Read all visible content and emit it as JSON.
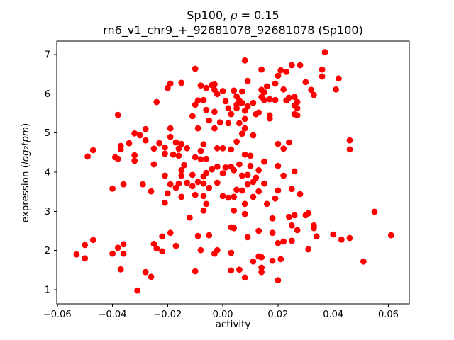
{
  "figure": {
    "background": "#ffffff"
  },
  "chart_data": {
    "type": "scatter",
    "title": "Sp100, ρ = 0.15",
    "subtitle": "rn6_v1_chr9_+_92681078_92681078 (Sp100)",
    "xlabel": "activity",
    "ylabel": "expression (log₂tpm)",
    "marker_color": "#ff0000",
    "marker_radius_px": 4.4,
    "grid": false,
    "legend": null,
    "xlim": [
      -0.0602,
      0.0676
    ],
    "ylim": [
      0.639,
      7.344
    ],
    "xticks": [
      -0.06,
      -0.04,
      -0.02,
      0.0,
      0.02,
      0.04,
      0.06
    ],
    "xtick_labels": [
      "−0.06",
      "−0.04",
      "−0.02",
      "0.00",
      "0.02",
      "0.04",
      "0.06"
    ],
    "yticks": [
      1,
      2,
      3,
      4,
      5,
      6,
      7
    ],
    "ytick_labels": [
      "1",
      "2",
      "3",
      "4",
      "5",
      "6",
      "7"
    ],
    "points": [
      [
        -0.019,
        6.26
      ],
      [
        -0.02,
        6.15
      ],
      [
        -0.024,
        5.79
      ],
      [
        -0.038,
        5.46
      ],
      [
        -0.028,
        5.1
      ],
      [
        -0.032,
        4.99
      ],
      [
        -0.03,
        4.94
      ],
      [
        -0.019,
        5.12
      ],
      [
        -0.019,
        4.9
      ],
      [
        -0.028,
        4.81
      ],
      [
        -0.034,
        4.74
      ],
      [
        -0.023,
        4.74
      ],
      [
        -0.021,
        4.63
      ],
      [
        -0.047,
        4.56
      ],
      [
        -0.049,
        4.4
      ],
      [
        -0.037,
        4.67
      ],
      [
        -0.037,
        4.58
      ],
      [
        -0.039,
        4.38
      ],
      [
        -0.038,
        4.34
      ],
      [
        -0.032,
        4.43
      ],
      [
        -0.032,
        4.29
      ],
      [
        -0.025,
        4.6
      ],
      [
        -0.025,
        4.2
      ],
      [
        -0.021,
        4.47
      ],
      [
        -0.009,
        5.83
      ],
      [
        -0.01,
        5.72
      ],
      [
        -0.006,
        5.59
      ],
      [
        -0.003,
        5.54
      ],
      [
        0.002,
        5.63
      ],
      [
        0.003,
        5.48
      ],
      [
        -0.011,
        5.43
      ],
      [
        -0.005,
        5.32
      ],
      [
        -0.001,
        5.27
      ],
      [
        0.002,
        5.25
      ],
      [
        -0.009,
        5.12
      ],
      [
        -0.003,
        5.12
      ],
      [
        -0.017,
        4.76
      ],
      [
        -0.015,
        4.72
      ],
      [
        -0.016,
        4.6
      ],
      [
        -0.013,
        4.61
      ],
      [
        -0.018,
        4.45
      ],
      [
        -0.016,
        4.42
      ],
      [
        -0.007,
        4.71
      ],
      [
        -0.008,
        4.54
      ],
      [
        -0.01,
        4.38
      ],
      [
        -0.008,
        4.33
      ],
      [
        -0.006,
        4.34
      ],
      [
        -0.002,
        4.61
      ],
      [
        0.0,
        4.61
      ],
      [
        0.003,
        4.58
      ],
      [
        -0.014,
        4.18
      ],
      [
        -0.015,
        4.05
      ],
      [
        -0.004,
        4.07
      ],
      [
        -0.002,
        4.14
      ],
      [
        0.001,
        4.12
      ],
      [
        0.003,
        4.14
      ],
      [
        0.004,
        4.05
      ],
      [
        -0.006,
        3.98
      ],
      [
        0.0,
        3.97
      ],
      [
        0.001,
        5.81
      ],
      [
        0.006,
        5.83
      ],
      [
        0.011,
        5.77
      ],
      [
        0.015,
        5.84
      ],
      [
        0.019,
        5.84
      ],
      [
        0.023,
        5.83
      ],
      [
        0.005,
        5.63
      ],
      [
        0.008,
        5.57
      ],
      [
        0.012,
        5.48
      ],
      [
        0.013,
        5.52
      ],
      [
        0.017,
        5.45
      ],
      [
        0.017,
        5.37
      ],
      [
        0.008,
        5.36
      ],
      [
        0.006,
        5.25
      ],
      [
        0.008,
        5.12
      ],
      [
        0.007,
        4.98
      ],
      [
        0.011,
        4.94
      ],
      [
        0.005,
        4.78
      ],
      [
        0.02,
        4.72
      ],
      [
        0.024,
        4.76
      ],
      [
        0.022,
        4.6
      ],
      [
        0.008,
        4.45
      ],
      [
        0.01,
        4.42
      ],
      [
        0.006,
        4.2
      ],
      [
        0.01,
        4.16
      ],
      [
        0.015,
        4.27
      ],
      [
        0.02,
        4.16
      ],
      [
        0.013,
        4.05
      ],
      [
        0.026,
        4.02
      ],
      [
        0.008,
        6.85
      ],
      [
        -0.01,
        6.64
      ],
      [
        0.014,
        6.62
      ],
      [
        0.021,
        6.6
      ],
      [
        0.023,
        6.56
      ],
      [
        -0.015,
        6.28
      ],
      [
        0.009,
        6.33
      ],
      [
        0.019,
        6.26
      ],
      [
        0.02,
        6.46
      ],
      [
        0.016,
        6.19
      ],
      [
        -0.008,
        6.21
      ],
      [
        -0.006,
        6.15
      ],
      [
        -0.004,
        6.22
      ],
      [
        -0.003,
        6.24
      ],
      [
        -0.003,
        6.1
      ],
      [
        -0.002,
        5.99
      ],
      [
        0.0,
        6.07
      ],
      [
        0.004,
        6.08
      ],
      [
        0.007,
        6.06
      ],
      [
        0.005,
        5.93
      ],
      [
        0.015,
        6.04
      ],
      [
        0.014,
        6.1
      ],
      [
        0.022,
        6.11
      ],
      [
        0.014,
        5.92
      ],
      [
        0.017,
        5.86
      ],
      [
        0.005,
        5.72
      ],
      [
        0.007,
        5.77
      ],
      [
        0.009,
        5.68
      ],
      [
        -0.007,
        5.84
      ],
      [
        0.024,
        5.9
      ],
      [
        0.026,
        5.92
      ],
      [
        0.037,
        7.06
      ],
      [
        0.025,
        6.73
      ],
      [
        0.028,
        6.73
      ],
      [
        0.036,
        6.62
      ],
      [
        0.036,
        6.44
      ],
      [
        0.03,
        6.3
      ],
      [
        0.042,
        6.39
      ],
      [
        0.041,
        6.11
      ],
      [
        0.032,
        6.1
      ],
      [
        0.033,
        5.97
      ],
      [
        0.027,
        5.79
      ],
      [
        0.026,
        5.7
      ],
      [
        0.027,
        5.63
      ],
      [
        0.026,
        5.48
      ],
      [
        0.027,
        5.45
      ],
      [
        0.046,
        4.81
      ],
      [
        0.046,
        4.58
      ],
      [
        -0.021,
        3.91
      ],
      [
        -0.04,
        3.58
      ],
      [
        -0.036,
        3.69
      ],
      [
        -0.029,
        3.69
      ],
      [
        -0.026,
        3.51
      ],
      [
        -0.019,
        3.69
      ],
      [
        -0.017,
        3.6
      ],
      [
        -0.02,
        3.46
      ],
      [
        -0.021,
        3.22
      ],
      [
        -0.047,
        2.27
      ],
      [
        -0.05,
        2.14
      ],
      [
        -0.053,
        1.9
      ],
      [
        -0.05,
        1.8
      ],
      [
        -0.022,
        2.36
      ],
      [
        -0.019,
        2.45
      ],
      [
        -0.025,
        2.17
      ],
      [
        -0.024,
        2.05
      ],
      [
        -0.022,
        1.98
      ],
      [
        -0.04,
        1.92
      ],
      [
        -0.038,
        2.07
      ],
      [
        -0.036,
        2.16
      ],
      [
        -0.036,
        1.92
      ],
      [
        -0.037,
        1.52
      ],
      [
        -0.028,
        1.45
      ],
      [
        -0.026,
        1.33
      ],
      [
        -0.031,
        0.98
      ],
      [
        -0.017,
        2.12
      ],
      [
        -0.015,
        3.91
      ],
      [
        -0.011,
        3.93
      ],
      [
        -0.007,
        3.89
      ],
      [
        0.007,
        3.91
      ],
      [
        0.009,
        3.93
      ],
      [
        0.012,
        3.86
      ],
      [
        0.022,
        3.91
      ],
      [
        -0.016,
        3.71
      ],
      [
        -0.013,
        3.73
      ],
      [
        -0.011,
        3.64
      ],
      [
        -0.009,
        3.75
      ],
      [
        -0.007,
        3.71
      ],
      [
        -0.005,
        3.6
      ],
      [
        -0.002,
        3.73
      ],
      [
        0.009,
        3.69
      ],
      [
        0.011,
        3.75
      ],
      [
        0.015,
        3.71
      ],
      [
        0.005,
        3.55
      ],
      [
        0.007,
        3.53
      ],
      [
        0.013,
        3.51
      ],
      [
        0.02,
        3.53
      ],
      [
        0.025,
        3.57
      ],
      [
        -0.015,
        3.37
      ],
      [
        -0.01,
        3.42
      ],
      [
        -0.007,
        3.39
      ],
      [
        0.0,
        3.39
      ],
      [
        0.002,
        3.35
      ],
      [
        0.004,
        3.37
      ],
      [
        0.011,
        3.37
      ],
      [
        0.019,
        3.33
      ],
      [
        -0.006,
        3.19
      ],
      [
        0.008,
        3.19
      ],
      [
        0.016,
        3.19
      ],
      [
        -0.007,
        3.02
      ],
      [
        0.004,
        3.02
      ],
      [
        0.008,
        2.93
      ],
      [
        -0.012,
        2.84
      ],
      [
        0.018,
        2.82
      ],
      [
        0.024,
        2.86
      ],
      [
        0.003,
        2.59
      ],
      [
        0.004,
        2.57
      ],
      [
        0.013,
        2.5
      ],
      [
        0.018,
        2.45
      ],
      [
        -0.009,
        2.37
      ],
      [
        -0.005,
        2.39
      ],
      [
        0.009,
        2.34
      ],
      [
        0.02,
        2.19
      ],
      [
        0.022,
        2.23
      ],
      [
        0.025,
        2.25
      ],
      [
        -0.008,
        2.01
      ],
      [
        -0.003,
        1.92
      ],
      [
        -0.002,
        2.01
      ],
      [
        0.003,
        1.94
      ],
      [
        0.013,
        1.85
      ],
      [
        0.014,
        1.83
      ],
      [
        0.011,
        1.72
      ],
      [
        0.018,
        1.74
      ],
      [
        0.021,
        1.78
      ],
      [
        -0.01,
        1.47
      ],
      [
        0.003,
        1.49
      ],
      [
        0.006,
        1.51
      ],
      [
        0.014,
        1.56
      ],
      [
        0.014,
        1.45
      ],
      [
        0.008,
        1.31
      ],
      [
        0.02,
        1.24
      ],
      [
        0.026,
        2.9
      ],
      [
        0.025,
        2.64
      ],
      [
        0.028,
        3.44
      ],
      [
        0.031,
        2.95
      ],
      [
        0.03,
        2.9
      ],
      [
        0.027,
        2.52
      ],
      [
        0.033,
        2.64
      ],
      [
        0.033,
        2.57
      ],
      [
        0.034,
        2.36
      ],
      [
        0.04,
        2.41
      ],
      [
        0.043,
        2.28
      ],
      [
        0.046,
        2.32
      ],
      [
        0.055,
        2.99
      ],
      [
        0.061,
        2.39
      ],
      [
        0.031,
        2.03
      ],
      [
        0.051,
        1.72
      ]
    ]
  }
}
